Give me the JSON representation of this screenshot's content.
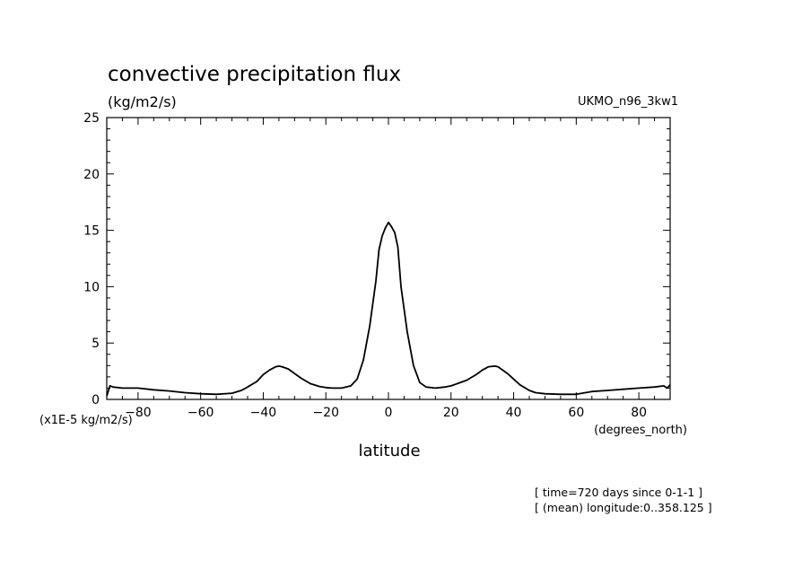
{
  "chart_data": {
    "type": "line",
    "title": "convective precipitation flux",
    "units_label": "(kg/m2/s)",
    "model_label": "UKMO_n96_3kw1",
    "scale_label": "(x1E-5 kg/m2/s)",
    "xlabel": "latitude",
    "x_units": "(degrees_north)",
    "xlim": [
      -90,
      90
    ],
    "ylim": [
      0,
      25
    ],
    "xticks": [
      -80,
      -60,
      -40,
      -20,
      0,
      20,
      40,
      60,
      80
    ],
    "yticks": [
      0,
      5,
      10,
      15,
      20,
      25
    ],
    "grid": false,
    "series": [
      {
        "x": [
          -90,
          -89,
          -88,
          -85,
          -80,
          -75,
          -70,
          -65,
          -60,
          -55,
          -50,
          -47,
          -45,
          -42,
          -40,
          -38,
          -36,
          -35,
          -34,
          -32,
          -30,
          -28,
          -25,
          -22,
          -20,
          -18,
          -15,
          -12,
          -10,
          -8,
          -6,
          -4,
          -3,
          -2,
          -1,
          0,
          1,
          2,
          3,
          4,
          6,
          8,
          10,
          12,
          15,
          18,
          20,
          22,
          25,
          28,
          30,
          32,
          34,
          35,
          36,
          38,
          40,
          42,
          45,
          47,
          50,
          55,
          60,
          65,
          70,
          75,
          80,
          85,
          88,
          89,
          90
        ],
        "y": [
          0.3,
          1.2,
          1.1,
          1.0,
          1.0,
          0.85,
          0.75,
          0.6,
          0.5,
          0.45,
          0.55,
          0.8,
          1.1,
          1.6,
          2.2,
          2.6,
          2.9,
          2.95,
          2.9,
          2.7,
          2.3,
          1.9,
          1.4,
          1.15,
          1.05,
          1.0,
          1.0,
          1.2,
          1.8,
          3.5,
          6.5,
          10.5,
          13.3,
          14.5,
          15.2,
          15.7,
          15.3,
          14.8,
          13.5,
          10.0,
          6.0,
          3.0,
          1.5,
          1.1,
          1.0,
          1.1,
          1.2,
          1.4,
          1.7,
          2.2,
          2.6,
          2.9,
          2.95,
          2.9,
          2.7,
          2.3,
          1.8,
          1.3,
          0.8,
          0.6,
          0.5,
          0.45,
          0.45,
          0.7,
          0.8,
          0.9,
          1.0,
          1.1,
          1.2,
          1.0,
          1.3
        ]
      }
    ],
    "annotations": [
      "[ time=720 days since 0-1-1 ]",
      "[ (mean) longitude:0..358.125 ]"
    ]
  }
}
